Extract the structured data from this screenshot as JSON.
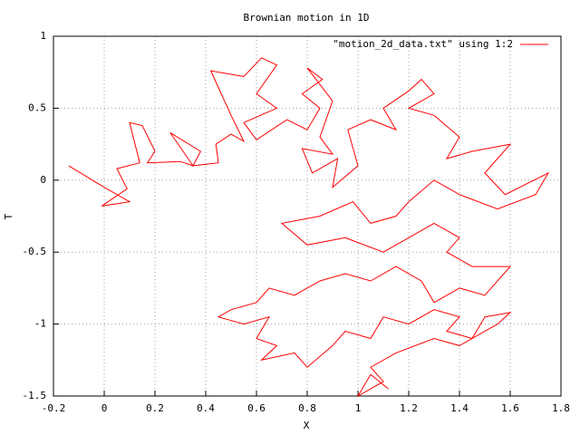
{
  "chart_data": {
    "type": "line",
    "title": "Brownian motion in 1D",
    "x_label": "X",
    "y_label": "T",
    "xlim": [
      -0.2,
      1.8
    ],
    "xticks": [
      -0.2,
      0,
      0.2,
      0.4,
      0.6,
      0.8,
      1,
      1.2,
      1.4,
      1.6,
      1.8
    ],
    "ylim": [
      -1.5,
      1
    ],
    "yticks": [
      -1.5,
      -1,
      -0.5,
      0,
      0.5,
      1
    ],
    "grid": true,
    "legend_position": "top-right",
    "series": [
      {
        "name": "\"motion_2d_data.txt\" using 1:2",
        "color": "#ff0000",
        "x": [
          -0.14,
          0.0,
          0.1,
          -0.01,
          0.09,
          0.05,
          0.14,
          0.1,
          0.15,
          0.2,
          0.17,
          0.3,
          0.35,
          0.26,
          0.38,
          0.35,
          0.45,
          0.44,
          0.5,
          0.55,
          0.5,
          0.42,
          0.55,
          0.62,
          0.68,
          0.6,
          0.68,
          0.55,
          0.6,
          0.72,
          0.8,
          0.85,
          0.78,
          0.86,
          0.8,
          0.9,
          0.85,
          0.9,
          0.78,
          0.82,
          0.92,
          0.9,
          1.0,
          0.96,
          1.05,
          1.15,
          1.1,
          1.2,
          1.25,
          1.3,
          1.2,
          1.3,
          1.4,
          1.35,
          1.45,
          1.6,
          1.5,
          1.58,
          1.75,
          1.7,
          1.55,
          1.4,
          1.3,
          1.2,
          1.15,
          1.05,
          0.98,
          0.85,
          0.7,
          0.8,
          0.95,
          1.1,
          1.2,
          1.3,
          1.4,
          1.35,
          1.45,
          1.6,
          1.5,
          1.4,
          1.3,
          1.25,
          1.15,
          1.05,
          0.95,
          0.85,
          0.75,
          0.65,
          0.6,
          0.5,
          0.45,
          0.55,
          0.65,
          0.6,
          0.68,
          0.62,
          0.75,
          0.8,
          0.9,
          0.95,
          1.05,
          1.1,
          1.2,
          1.3,
          1.4,
          1.35,
          1.45,
          1.5,
          1.6,
          1.55,
          1.4,
          1.3,
          1.15,
          1.05,
          1.1,
          1.0,
          1.05,
          1.12
        ],
        "values": [
          0.1,
          -0.05,
          -0.15,
          -0.18,
          -0.06,
          0.08,
          0.12,
          0.4,
          0.38,
          0.2,
          0.12,
          0.13,
          0.1,
          0.33,
          0.2,
          0.1,
          0.12,
          0.25,
          0.32,
          0.27,
          0.45,
          0.76,
          0.72,
          0.85,
          0.8,
          0.6,
          0.5,
          0.4,
          0.28,
          0.42,
          0.35,
          0.5,
          0.6,
          0.7,
          0.78,
          0.55,
          0.3,
          0.18,
          0.22,
          0.05,
          0.15,
          -0.05,
          0.1,
          0.35,
          0.42,
          0.35,
          0.5,
          0.62,
          0.7,
          0.6,
          0.5,
          0.45,
          0.3,
          0.15,
          0.2,
          0.25,
          0.05,
          -0.1,
          0.05,
          -0.1,
          -0.2,
          -0.1,
          0.0,
          -0.15,
          -0.25,
          -0.3,
          -0.15,
          -0.25,
          -0.3,
          -0.45,
          -0.4,
          -0.5,
          -0.4,
          -0.3,
          -0.4,
          -0.5,
          -0.6,
          -0.6,
          -0.8,
          -0.75,
          -0.85,
          -0.7,
          -0.6,
          -0.7,
          -0.65,
          -0.7,
          -0.8,
          -0.75,
          -0.85,
          -0.9,
          -0.95,
          -1.0,
          -0.95,
          -1.1,
          -1.15,
          -1.25,
          -1.2,
          -1.3,
          -1.15,
          -1.05,
          -1.1,
          -0.95,
          -1.0,
          -0.9,
          -0.95,
          -1.05,
          -1.1,
          -0.95,
          -0.92,
          -1.0,
          -1.15,
          -1.1,
          -1.2,
          -1.3,
          -1.4,
          -1.5,
          -1.35,
          -1.45
        ]
      }
    ]
  }
}
